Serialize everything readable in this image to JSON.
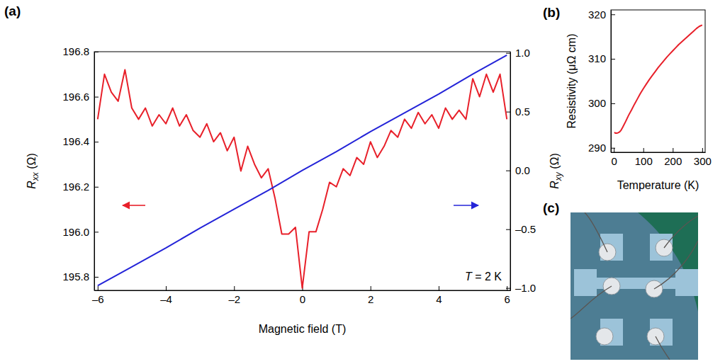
{
  "chart_data": [
    {
      "type": "line",
      "panel_label": "(a)",
      "x_label": "Magnetic field (T)",
      "y_label": "Rxx (Ω)",
      "y2_label": "Rxy (Ω)",
      "annotation": "T = 2 K",
      "xlim": [
        -6.1,
        6.1
      ],
      "xticks": [
        {
          "value": -6,
          "label": "–6"
        },
        {
          "value": -4,
          "label": "–4"
        },
        {
          "value": -2,
          "label": "–2"
        },
        0,
        2,
        4,
        6
      ],
      "ylim": [
        195.74,
        196.8
      ],
      "yticks": [
        195.8,
        {
          "value": 196,
          "label": "196.0"
        },
        196.2,
        196.4,
        196.6,
        196.8
      ],
      "y2lim": [
        -1.02,
        1.01
      ],
      "y2ticks": [
        {
          "value": -1,
          "label": "–1.0"
        },
        {
          "value": -0.5,
          "label": "–0.5"
        },
        {
          "value": 0,
          "label": "0.0"
        },
        0.5,
        {
          "value": 1,
          "label": "1.0"
        }
      ],
      "series": [
        {
          "color": "#e8202a",
          "x": [
            -6,
            -5.8,
            -5.6,
            -5.4,
            -5.2,
            -5,
            -4.8,
            -4.6,
            -4.4,
            -4.2,
            -4,
            -3.8,
            -3.6,
            -3.4,
            -3.2,
            -3,
            -2.8,
            -2.6,
            -2.4,
            -2.2,
            -2,
            -1.8,
            -1.6,
            -1.4,
            -1.2,
            -1,
            -0.8,
            -0.6,
            -0.4,
            -0.2,
            0,
            0.2,
            0.4,
            0.6,
            0.8,
            1,
            1.2,
            1.4,
            1.6,
            1.8,
            2,
            2.2,
            2.4,
            2.6,
            2.8,
            3,
            3.2,
            3.4,
            3.6,
            3.8,
            4,
            4.2,
            4.4,
            4.6,
            4.8,
            5,
            5.2,
            5.4,
            5.6,
            5.8,
            6
          ],
          "values": [
            196.5,
            196.7,
            196.62,
            196.58,
            196.72,
            196.55,
            196.5,
            196.55,
            196.47,
            196.52,
            196.48,
            196.55,
            196.47,
            196.52,
            196.45,
            196.42,
            196.48,
            196.4,
            196.44,
            196.36,
            196.42,
            196.27,
            196.38,
            196.3,
            196.24,
            196.28,
            196.15,
            195.99,
            195.99,
            196.02,
            195.75,
            196.0,
            196.0,
            196.1,
            196.22,
            196.2,
            196.28,
            196.25,
            196.33,
            196.3,
            196.4,
            196.33,
            196.38,
            196.45,
            196.42,
            196.5,
            196.46,
            196.53,
            196.48,
            196.52,
            196.46,
            196.55,
            196.5,
            196.54,
            196.5,
            196.68,
            196.6,
            196.7,
            196.62,
            196.7,
            196.5
          ]
        },
        {
          "color": "#2424d8",
          "axis": "y2",
          "x": [
            -6,
            -5,
            -4,
            -3,
            -2,
            -1,
            0,
            1,
            2,
            3,
            4,
            5,
            6
          ],
          "values": [
            -0.98,
            -0.82,
            -0.66,
            -0.49,
            -0.33,
            -0.17,
            0.0,
            0.16,
            0.33,
            0.49,
            0.65,
            0.82,
            0.98
          ]
        }
      ]
    },
    {
      "type": "line",
      "panel_label": "(b)",
      "x_label": "Temperature (K)",
      "y_label": "Resistivity (μΩ cm)",
      "xlim": [
        -10,
        310
      ],
      "xticks": [
        0,
        100,
        200,
        300
      ],
      "ylim": [
        289,
        321
      ],
      "yticks": [
        290,
        300,
        310,
        320
      ],
      "series": [
        {
          "color": "#e8202a",
          "x": [
            2,
            5,
            10,
            15,
            20,
            25,
            30,
            40,
            50,
            60,
            70,
            80,
            90,
            100,
            110,
            120,
            130,
            140,
            150,
            160,
            170,
            180,
            190,
            200,
            210,
            220,
            230,
            240,
            250,
            260,
            270,
            280,
            290,
            300
          ],
          "values": [
            293.5,
            293.3,
            293.3,
            293.4,
            293.6,
            294.0,
            294.6,
            295.9,
            297.3,
            298.5,
            299.8,
            301.0,
            302.2,
            303.3,
            304.3,
            305.3,
            306.2,
            307.1,
            308.0,
            308.8,
            309.6,
            310.4,
            311.1,
            311.8,
            312.5,
            313.2,
            313.8,
            314.4,
            315.0,
            315.6,
            316.2,
            316.8,
            317.3,
            317.6
          ]
        }
      ]
    }
  ],
  "photo": {
    "panel_label": "(c)"
  }
}
